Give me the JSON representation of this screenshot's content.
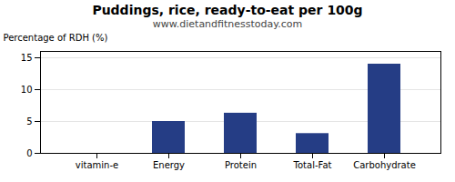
{
  "chart_data": {
    "type": "bar",
    "title": "Puddings, rice, ready-to-eat per 100g",
    "subtitle": "www.dietandfitnesstoday.com",
    "categories": [
      "vitamin-e",
      "Energy",
      "Protein",
      "Total-Fat",
      "Carbohydrate"
    ],
    "values": [
      0,
      5.0,
      6.3,
      3.1,
      14.0
    ],
    "color": "#253d85",
    "ylabel": "Percentage of RDH (%)",
    "ylim": [
      0,
      16
    ],
    "yticks": [
      0,
      5,
      10,
      15
    ],
    "grid": true
  }
}
